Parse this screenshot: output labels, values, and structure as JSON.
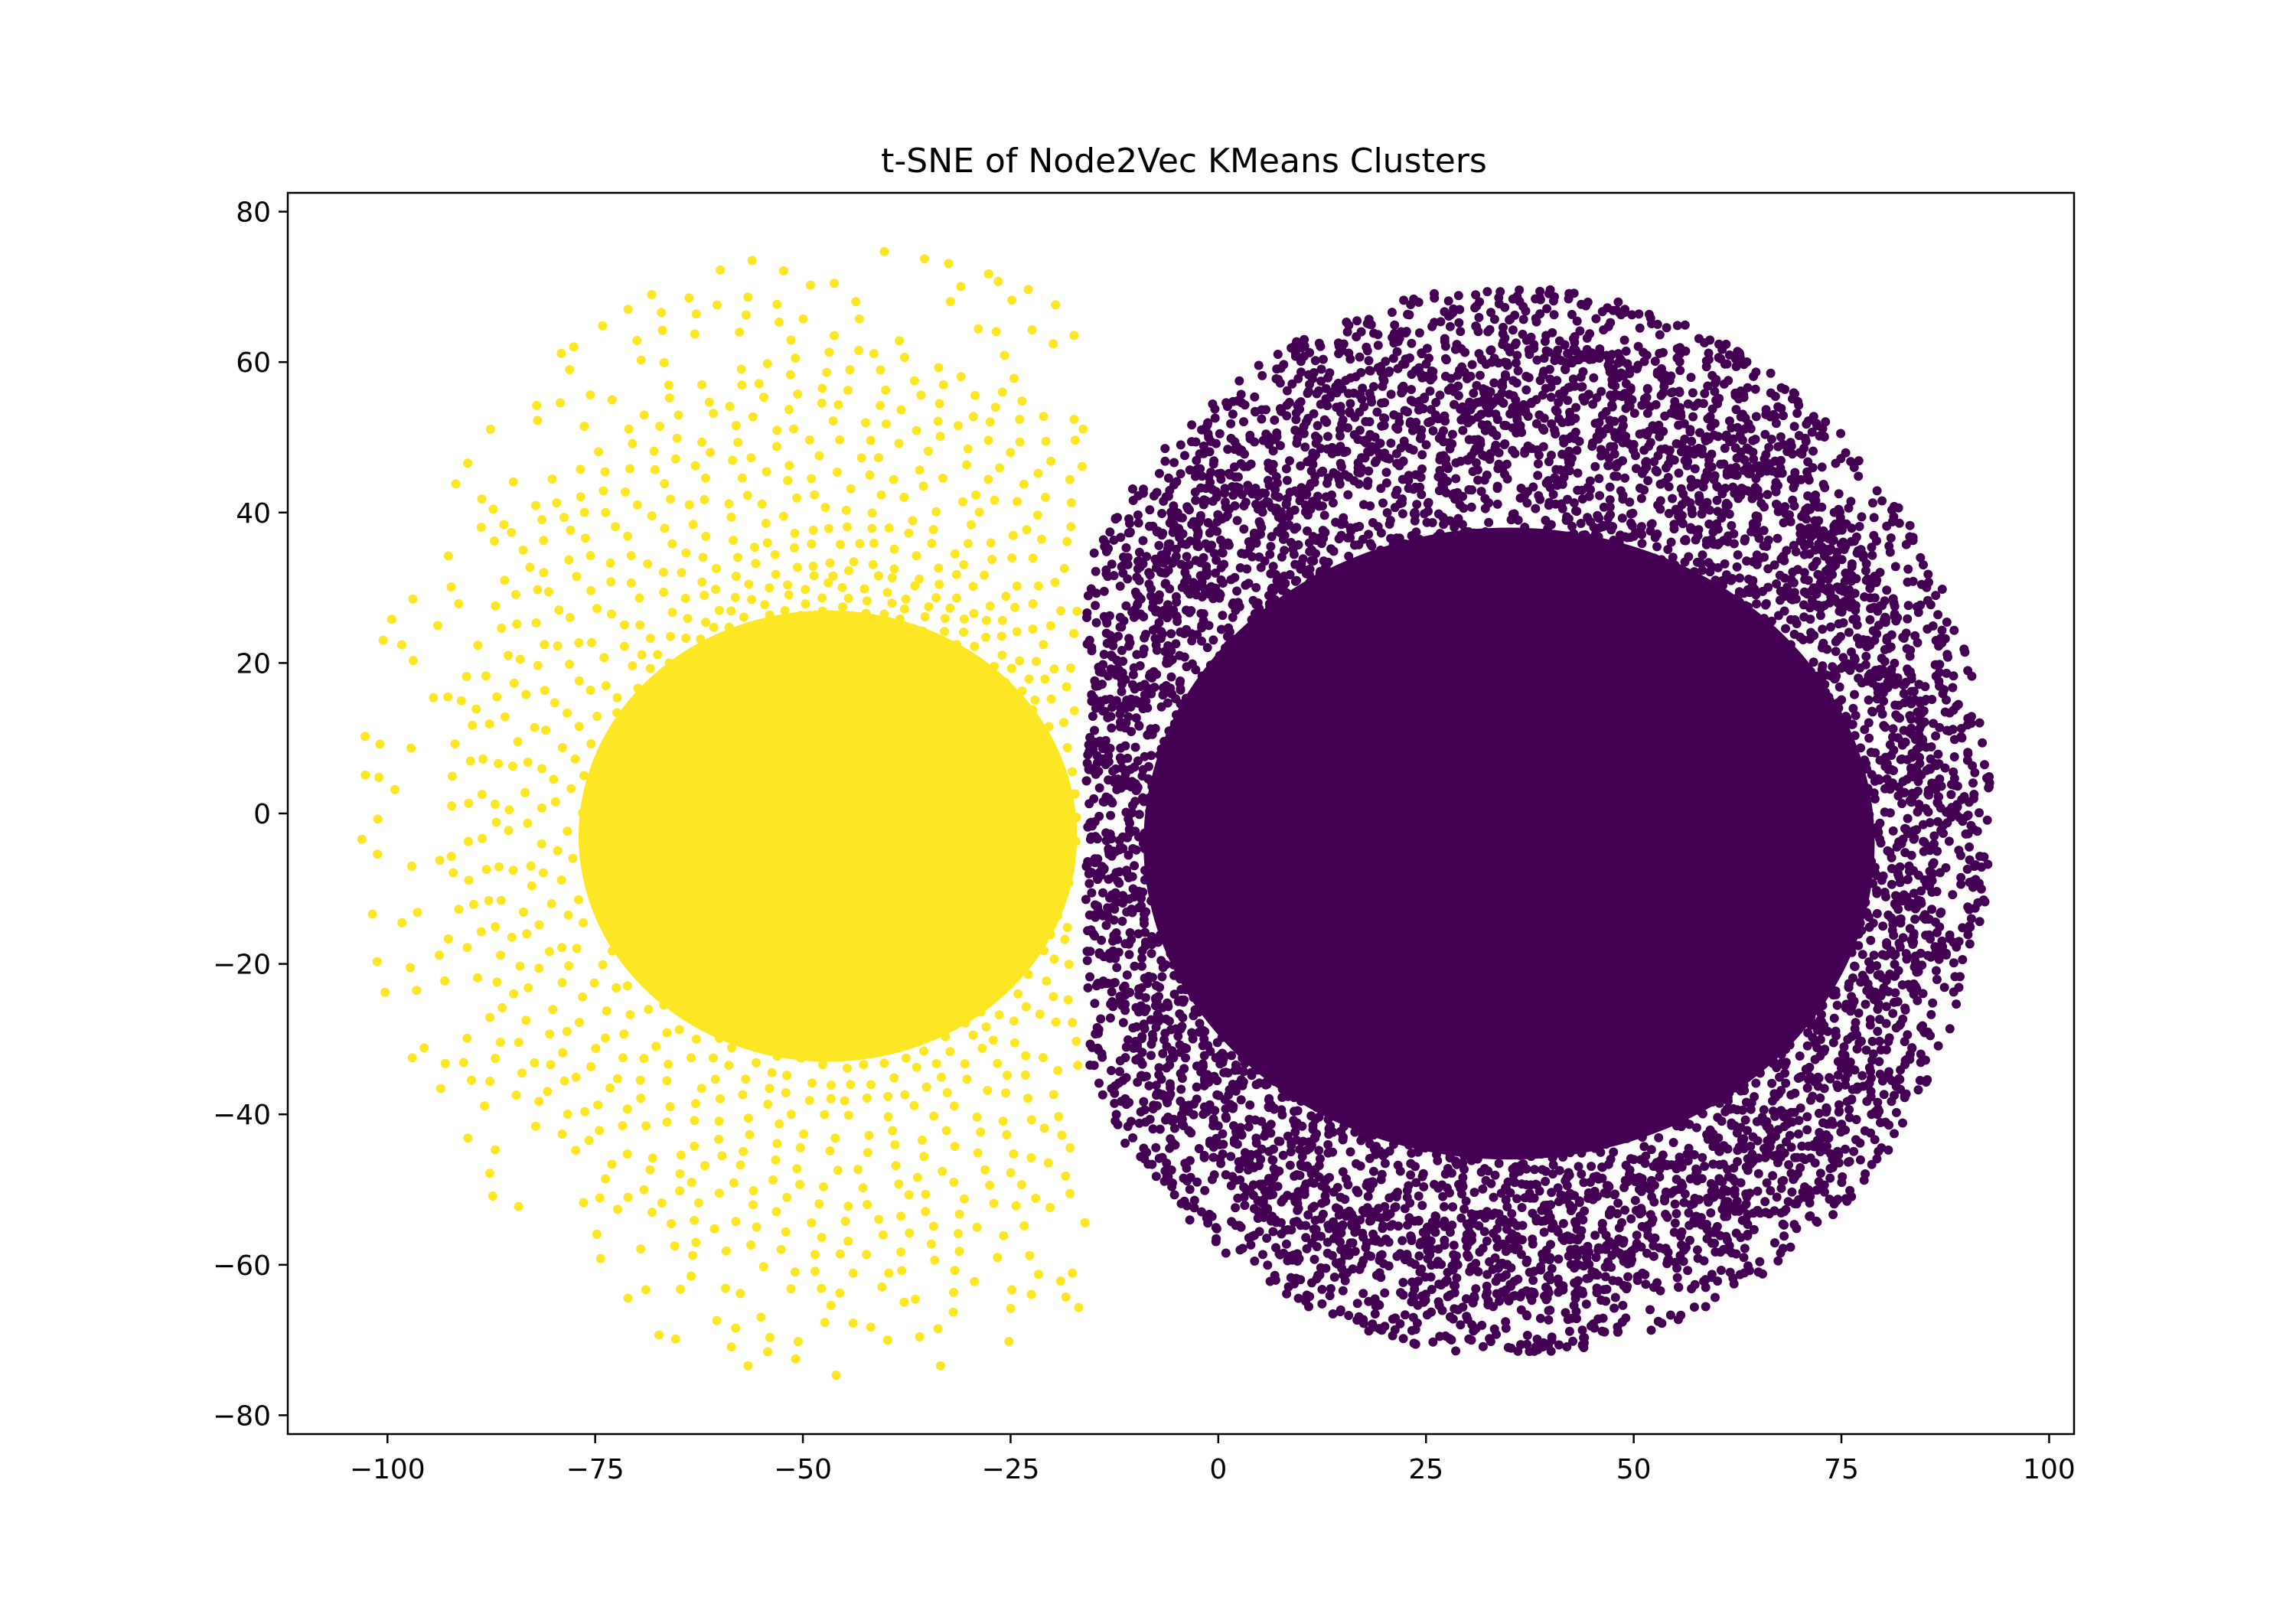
{
  "chart_data": {
    "type": "scatter",
    "title": "t-SNE of Node2Vec KMeans Clusters",
    "xlabel": "",
    "ylabel": "",
    "xlim": [
      -112,
      103
    ],
    "ylim": [
      -82.5,
      82.5
    ],
    "x_ticks": [
      -100,
      -75,
      -50,
      -25,
      0,
      25,
      50,
      75,
      100
    ],
    "x_tick_labels": [
      "−100",
      "−75",
      "−50",
      "−25",
      "0",
      "25",
      "50",
      "75",
      "100"
    ],
    "y_ticks": [
      -80,
      -60,
      -40,
      -20,
      0,
      20,
      40,
      60,
      80
    ],
    "y_tick_labels": [
      "−80",
      "−60",
      "−40",
      "−20",
      "0",
      "20",
      "40",
      "60",
      "80"
    ],
    "grid": false,
    "legend": "none",
    "clusters": [
      {
        "color": "#fde725",
        "center": [
          -45,
          0
        ],
        "radius_x": 58,
        "radius_y": 75,
        "dense_core_radius": 30,
        "boundary_x": -16,
        "point_count_estimate": 9000
      },
      {
        "color": "#440154",
        "center": [
          35,
          -1
        ],
        "radius_x": 58,
        "radius_y": 71,
        "dense_core_radius": 40,
        "boundary_x": -16,
        "point_count_estimate": 18000
      }
    ]
  }
}
